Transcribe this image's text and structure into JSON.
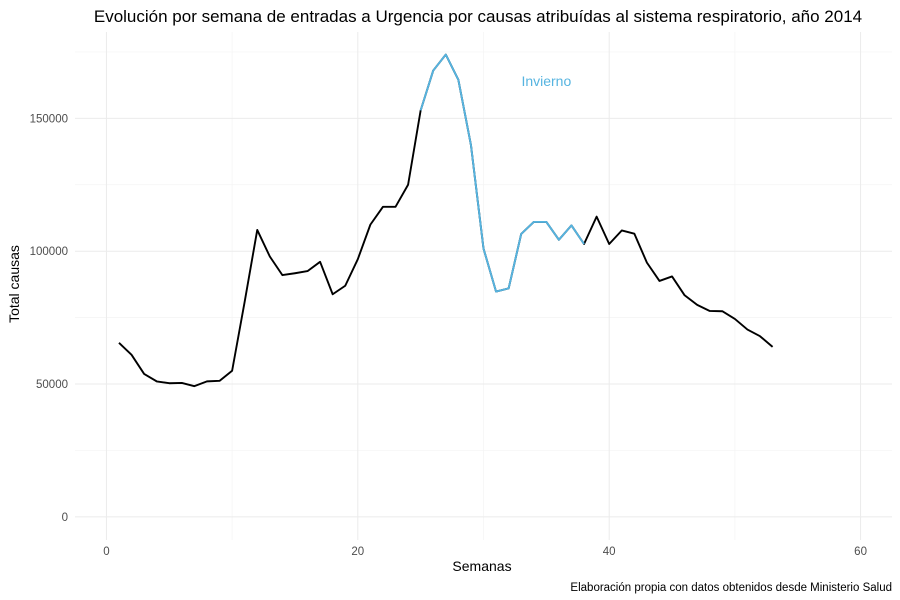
{
  "chart_data": {
    "type": "line",
    "title": "Evolución por semana de entradas a Urgencia por causas atribuídas al sistema respiratorio, año 2014",
    "xlabel": "Semanas",
    "ylabel": "Total causas",
    "caption": "Elaboración propia con datos obtenidos desde Ministerio Salud",
    "xlim": [
      -2.5,
      62.5
    ],
    "ylim": [
      -8700,
      182500
    ],
    "x_ticks": [
      0,
      20,
      40,
      60
    ],
    "x_tick_labels": [
      "0",
      "20",
      "40",
      "60"
    ],
    "y_ticks": [
      0,
      50000,
      100000,
      150000
    ],
    "y_tick_labels": [
      "0",
      "50000",
      "100000",
      "150000"
    ],
    "grid": true,
    "legend": "none",
    "colors": {
      "base": "#000000",
      "highlight": "#56b4e0",
      "grid": "#ebebeb",
      "tick_text": "#4d4d4d"
    },
    "annotations": [
      {
        "text": "Invierno",
        "x": 35,
        "y": 164000,
        "color": "#56b4e0"
      }
    ],
    "series": [
      {
        "color": "#000000",
        "x": [
          1,
          2,
          3,
          4,
          5,
          6,
          7,
          8,
          9,
          10,
          11,
          12,
          13,
          14,
          15,
          16,
          17,
          18,
          19,
          20,
          21,
          22,
          23,
          24,
          25,
          26,
          27,
          28,
          29,
          30,
          31,
          32,
          33,
          34,
          35,
          36,
          37,
          38,
          39,
          40,
          41,
          42,
          43,
          44,
          45,
          46,
          47,
          48,
          49,
          50,
          51,
          52,
          53
        ],
        "values": [
          65500,
          61000,
          53800,
          51000,
          50300,
          50400,
          49200,
          51000,
          51200,
          55000,
          81000,
          108000,
          98000,
          91000,
          91700,
          92500,
          96000,
          83800,
          87000,
          97000,
          110000,
          116700,
          116700,
          125000,
          153000,
          168000,
          174000,
          164500,
          140000,
          101000,
          84800,
          86000,
          106500,
          111000,
          111000,
          104300,
          109700,
          102700,
          113000,
          102700,
          107800,
          106600,
          95700,
          88800,
          90500,
          83400,
          79800,
          77500,
          77400,
          74500,
          70500,
          68000,
          64000
        ]
      },
      {
        "color": "#56b4e0",
        "x": [
          25,
          26,
          27,
          28,
          29,
          30,
          31,
          32,
          33,
          34,
          35,
          36,
          37,
          38
        ],
        "values": [
          153000,
          168000,
          174000,
          164500,
          140000,
          101000,
          84800,
          86000,
          106500,
          111000,
          111000,
          104300,
          109700,
          102700
        ]
      }
    ]
  }
}
